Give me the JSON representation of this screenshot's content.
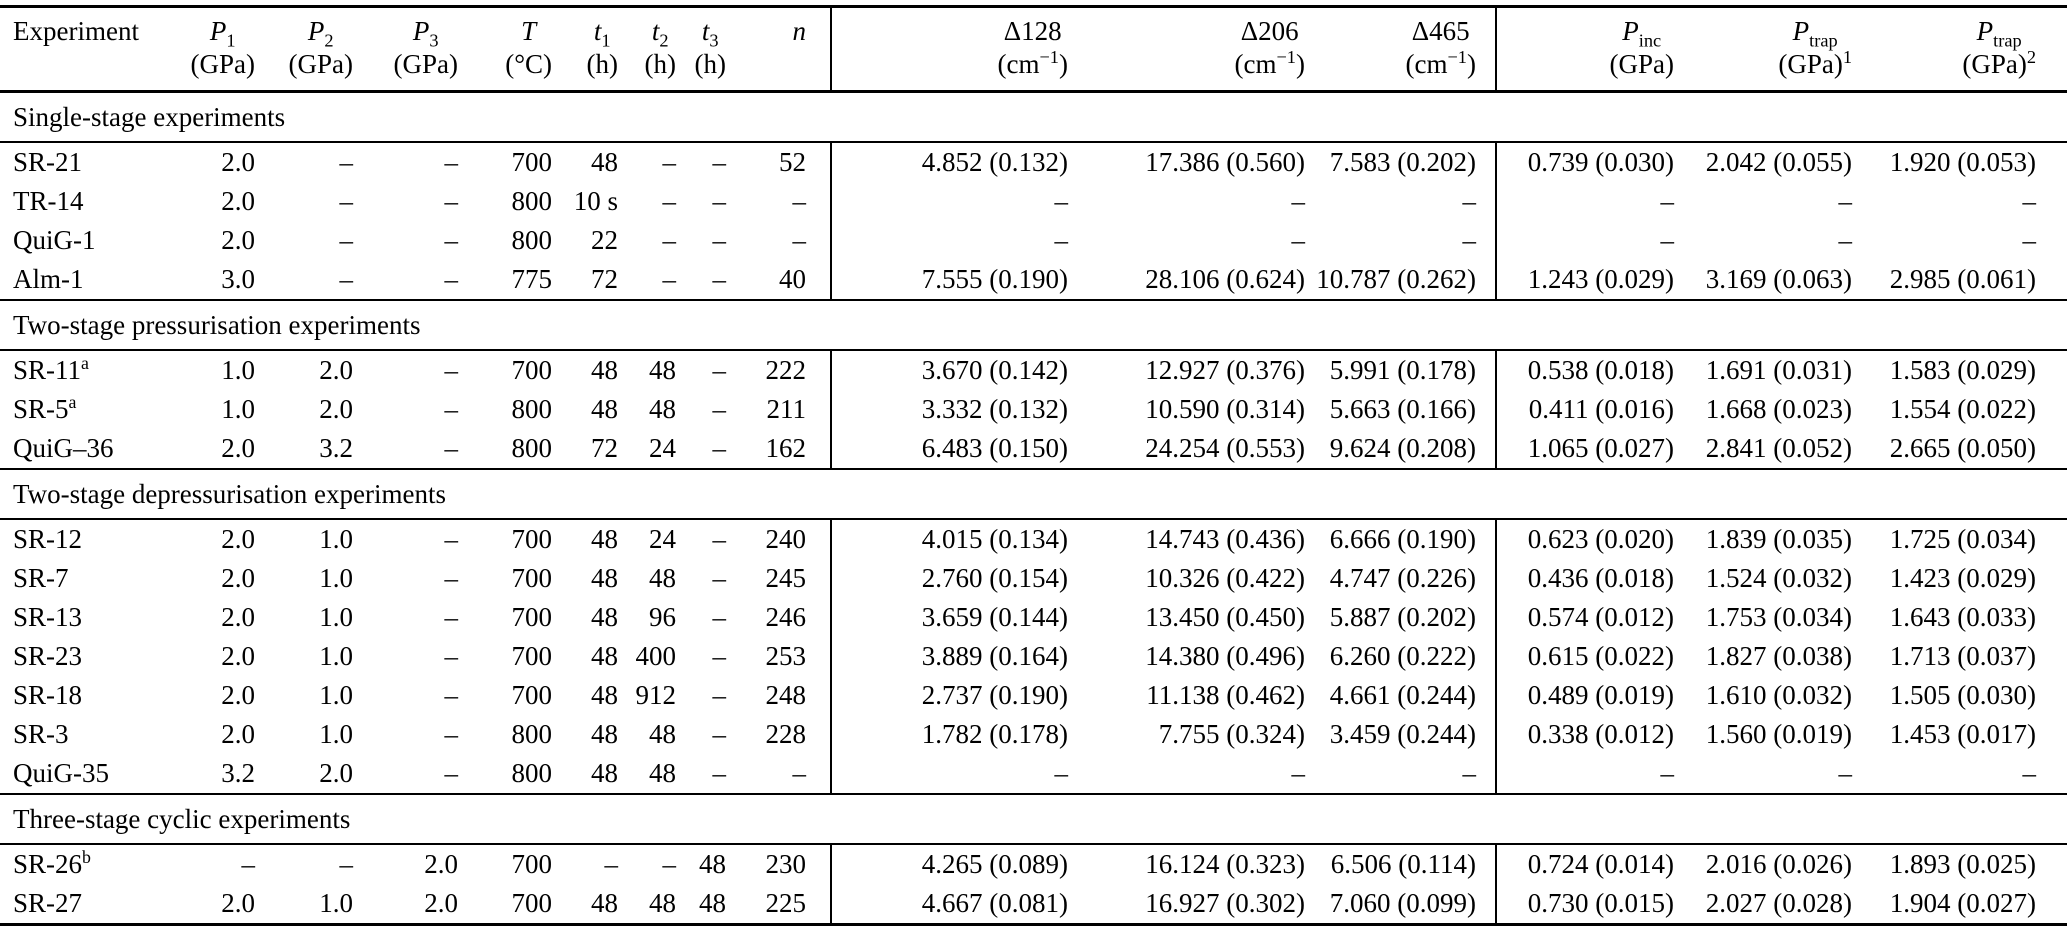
{
  "table": {
    "columns": [
      {
        "id": "experiment",
        "line1": [
          {
            "t": "Experiment"
          }
        ],
        "line2": []
      },
      {
        "id": "p1",
        "line1": [
          {
            "t": "P",
            "i": true
          },
          {
            "t": "1",
            "sub": true
          }
        ],
        "line2": [
          {
            "t": "(GPa)"
          }
        ]
      },
      {
        "id": "p2",
        "line1": [
          {
            "t": "P",
            "i": true
          },
          {
            "t": "2",
            "sub": true
          }
        ],
        "line2": [
          {
            "t": "(GPa)"
          }
        ]
      },
      {
        "id": "p3",
        "line1": [
          {
            "t": "P",
            "i": true
          },
          {
            "t": "3",
            "sub": true
          }
        ],
        "line2": [
          {
            "t": "(GPa)"
          }
        ]
      },
      {
        "id": "temp",
        "line1": [
          {
            "t": "T",
            "i": true
          }
        ],
        "line2": [
          {
            "t": "(°C)"
          }
        ]
      },
      {
        "id": "t1",
        "line1": [
          {
            "t": "t",
            "i": true
          },
          {
            "t": "1",
            "sub": true
          }
        ],
        "line2": [
          {
            "t": "(h)"
          }
        ]
      },
      {
        "id": "t2",
        "line1": [
          {
            "t": "t",
            "i": true
          },
          {
            "t": "2",
            "sub": true
          }
        ],
        "line2": [
          {
            "t": "(h)"
          }
        ]
      },
      {
        "id": "t3",
        "line1": [
          {
            "t": "t",
            "i": true
          },
          {
            "t": "3",
            "sub": true
          }
        ],
        "line2": [
          {
            "t": "(h)"
          }
        ]
      },
      {
        "id": "n",
        "line1": [
          {
            "t": "n",
            "i": true
          }
        ],
        "line2": []
      },
      {
        "id": "d128",
        "line1": [
          {
            "t": "Δ128"
          }
        ],
        "line2": [
          {
            "t": "(cm"
          },
          {
            "t": "−1",
            "sup": true
          },
          {
            "t": ")"
          }
        ]
      },
      {
        "id": "d206",
        "line1": [
          {
            "t": "Δ206"
          }
        ],
        "line2": [
          {
            "t": "(cm"
          },
          {
            "t": "−1",
            "sup": true
          },
          {
            "t": ")"
          }
        ]
      },
      {
        "id": "d465",
        "line1": [
          {
            "t": "Δ465"
          }
        ],
        "line2": [
          {
            "t": "(cm"
          },
          {
            "t": "−1",
            "sup": true
          },
          {
            "t": ")"
          }
        ]
      },
      {
        "id": "pinc",
        "line1": [
          {
            "t": "P",
            "i": true
          },
          {
            "t": "inc",
            "sub": true
          }
        ],
        "line2": [
          {
            "t": "(GPa)"
          }
        ]
      },
      {
        "id": "ptrap1",
        "line1": [
          {
            "t": "P",
            "i": true
          },
          {
            "t": "trap",
            "sub": true
          }
        ],
        "line2": [
          {
            "t": "(GPa)"
          },
          {
            "t": "1",
            "sup": true
          }
        ]
      },
      {
        "id": "ptrap2",
        "line1": [
          {
            "t": "P",
            "i": true
          },
          {
            "t": "trap",
            "sub": true
          }
        ],
        "line2": [
          {
            "t": "(GPa)"
          },
          {
            "t": "2",
            "sup": true
          }
        ]
      }
    ],
    "sections": [
      {
        "title": "Single-stage experiments",
        "rows": [
          {
            "name": "SR-21",
            "name_sup": "",
            "values": [
              "2.0",
              "–",
              "–",
              "700",
              "48",
              "–",
              "–",
              "52",
              "4.852 (0.132)",
              "17.386 (0.560)",
              "7.583 (0.202)",
              "0.739 (0.030)",
              "2.042 (0.055)",
              "1.920 (0.053)"
            ]
          },
          {
            "name": "TR-14",
            "name_sup": "",
            "values": [
              "2.0",
              "–",
              "–",
              "800",
              "10 s",
              "–",
              "–",
              "–",
              "–",
              "–",
              "–",
              "–",
              "–",
              "–"
            ]
          },
          {
            "name": "QuiG-1",
            "name_sup": "",
            "values": [
              "2.0",
              "–",
              "–",
              "800",
              "22",
              "–",
              "–",
              "–",
              "–",
              "–",
              "–",
              "–",
              "–",
              "–"
            ]
          },
          {
            "name": "Alm-1",
            "name_sup": "",
            "values": [
              "3.0",
              "–",
              "–",
              "775",
              "72",
              "–",
              "–",
              "40",
              "7.555 (0.190)",
              "28.106 (0.624)",
              "10.787 (0.262)",
              "1.243 (0.029)",
              "3.169 (0.063)",
              "2.985 (0.061)"
            ]
          }
        ]
      },
      {
        "title": "Two-stage pressurisation experiments",
        "rows": [
          {
            "name": "SR-11",
            "name_sup": "a",
            "values": [
              "1.0",
              "2.0",
              "–",
              "700",
              "48",
              "48",
              "–",
              "222",
              "3.670 (0.142)",
              "12.927 (0.376)",
              "5.991 (0.178)",
              "0.538 (0.018)",
              "1.691 (0.031)",
              "1.583 (0.029)"
            ]
          },
          {
            "name": "SR-5",
            "name_sup": "a",
            "values": [
              "1.0",
              "2.0",
              "–",
              "800",
              "48",
              "48",
              "–",
              "211",
              "3.332 (0.132)",
              "10.590 (0.314)",
              "5.663 (0.166)",
              "0.411 (0.016)",
              "1.668 (0.023)",
              "1.554 (0.022)"
            ]
          },
          {
            "name": "QuiG–36",
            "name_sup": "",
            "values": [
              "2.0",
              "3.2",
              "–",
              "800",
              "72",
              "24",
              "–",
              "162",
              "6.483 (0.150)",
              "24.254 (0.553)",
              "9.624 (0.208)",
              "1.065 (0.027)",
              "2.841 (0.052)",
              "2.665 (0.050)"
            ]
          }
        ]
      },
      {
        "title": "Two-stage depressurisation experiments",
        "rows": [
          {
            "name": "SR-12",
            "name_sup": "",
            "values": [
              "2.0",
              "1.0",
              "–",
              "700",
              "48",
              "24",
              "–",
              "240",
              "4.015 (0.134)",
              "14.743 (0.436)",
              "6.666 (0.190)",
              "0.623 (0.020)",
              "1.839 (0.035)",
              "1.725 (0.034)"
            ]
          },
          {
            "name": "SR-7",
            "name_sup": "",
            "values": [
              "2.0",
              "1.0",
              "–",
              "700",
              "48",
              "48",
              "–",
              "245",
              "2.760 (0.154)",
              "10.326 (0.422)",
              "4.747 (0.226)",
              "0.436 (0.018)",
              "1.524 (0.032)",
              "1.423 (0.029)"
            ]
          },
          {
            "name": "SR-13",
            "name_sup": "",
            "values": [
              "2.0",
              "1.0",
              "–",
              "700",
              "48",
              "96",
              "–",
              "246",
              "3.659 (0.144)",
              "13.450 (0.450)",
              "5.887 (0.202)",
              "0.574 (0.012)",
              "1.753 (0.034)",
              "1.643 (0.033)"
            ]
          },
          {
            "name": "SR-23",
            "name_sup": "",
            "values": [
              "2.0",
              "1.0",
              "–",
              "700",
              "48",
              "400",
              "–",
              "253",
              "3.889 (0.164)",
              "14.380 (0.496)",
              "6.260 (0.222)",
              "0.615 (0.022)",
              "1.827 (0.038)",
              "1.713 (0.037)"
            ]
          },
          {
            "name": "SR-18",
            "name_sup": "",
            "values": [
              "2.0",
              "1.0",
              "–",
              "700",
              "48",
              "912",
              "–",
              "248",
              "2.737 (0.190)",
              "11.138 (0.462)",
              "4.661 (0.244)",
              "0.489 (0.019)",
              "1.610 (0.032)",
              "1.505 (0.030)"
            ]
          },
          {
            "name": "SR-3",
            "name_sup": "",
            "values": [
              "2.0",
              "1.0",
              "–",
              "800",
              "48",
              "48",
              "–",
              "228",
              "1.782 (0.178)",
              "7.755 (0.324)",
              "3.459 (0.244)",
              "0.338 (0.012)",
              "1.560 (0.019)",
              "1.453 (0.017)"
            ]
          },
          {
            "name": "QuiG-35",
            "name_sup": "",
            "values": [
              "3.2",
              "2.0",
              "–",
              "800",
              "48",
              "48",
              "–",
              "–",
              "–",
              "–",
              "–",
              "–",
              "–",
              "–"
            ]
          }
        ]
      },
      {
        "title": "Three-stage cyclic experiments",
        "rows": [
          {
            "name": "SR-26",
            "name_sup": "b",
            "values": [
              "–",
              "–",
              "2.0",
              "700",
              "–",
              "–",
              "48",
              "230",
              "4.265 (0.089)",
              "16.124 (0.323)",
              "6.506 (0.114)",
              "0.724 (0.014)",
              "2.016 (0.026)",
              "1.893 (0.025)"
            ]
          },
          {
            "name": "SR-27",
            "name_sup": "",
            "values": [
              "2.0",
              "1.0",
              "2.0",
              "700",
              "48",
              "48",
              "48",
              "225",
              "4.667 (0.081)",
              "16.927 (0.302)",
              "7.060 (0.099)",
              "0.730 (0.015)",
              "2.027 (0.028)",
              "1.904 (0.027)"
            ]
          }
        ]
      }
    ]
  }
}
